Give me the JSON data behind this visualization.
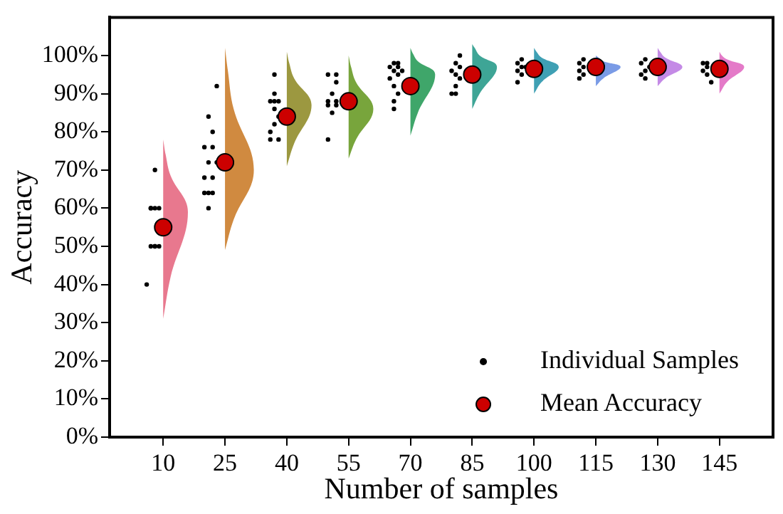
{
  "chart_data": {
    "type": "scatter",
    "xlabel": "Number of samples",
    "ylabel": "Accuracy",
    "xlim": [
      -3,
      158
    ],
    "xticks": [
      10,
      25,
      40,
      55,
      70,
      85,
      100,
      115,
      130,
      145
    ],
    "ylim": [
      0,
      110
    ],
    "yticks": [
      {
        "value": 0,
        "label": "0%"
      },
      {
        "value": 10,
        "label": "10%"
      },
      {
        "value": 20,
        "label": "20%"
      },
      {
        "value": 30,
        "label": "30%"
      },
      {
        "value": 40,
        "label": "40%"
      },
      {
        "value": 50,
        "label": "50%"
      },
      {
        "value": 60,
        "label": "60%"
      },
      {
        "value": 70,
        "label": "70%"
      },
      {
        "value": 80,
        "label": "80%"
      },
      {
        "value": 90,
        "label": "90%"
      },
      {
        "value": 100,
        "label": "100%"
      }
    ],
    "grid": false,
    "legend": "bottom right",
    "series": [
      {
        "type": "area",
        "color": "#e8788e",
        "x": [
          10,
          11.8,
          16,
          11.8,
          10.6,
          10
        ],
        "values": [
          31,
          42,
          59,
          68.5,
          74,
          78
        ]
      },
      {
        "type": "area",
        "color": "#d08a40",
        "x": [
          25,
          27.1,
          32,
          27.1,
          25.7,
          25
        ],
        "values": [
          49,
          57,
          70,
          86,
          96,
          102
        ]
      },
      {
        "type": "area",
        "color": "#9c9840",
        "x": [
          40,
          41.8,
          46,
          41.8,
          40.6,
          40
        ],
        "values": [
          71,
          77,
          87,
          94,
          98,
          101
        ]
      },
      {
        "type": "area",
        "color": "#78a53c",
        "x": [
          55,
          56.8,
          61,
          56.8,
          55.6,
          55
        ],
        "values": [
          73,
          78,
          86,
          93,
          97,
          100
        ]
      },
      {
        "type": "area",
        "color": "#3fa66a",
        "x": [
          70,
          71.8,
          76,
          71.8,
          70.6,
          70
        ],
        "values": [
          79,
          85,
          95,
          98.5,
          100.5,
          102
        ]
      },
      {
        "type": "area",
        "color": "#3ea596",
        "x": [
          85,
          86.8,
          91,
          86.8,
          85.6,
          85
        ],
        "values": [
          86,
          90,
          97,
          100,
          102,
          103
        ]
      },
      {
        "type": "area",
        "color": "#3fa0b4",
        "x": [
          100,
          101.8,
          106,
          101.8,
          100.6,
          100
        ],
        "values": [
          90,
          93,
          97,
          99.5,
          101,
          102
        ]
      },
      {
        "type": "area",
        "color": "#7a9be6",
        "x": [
          115,
          116.8,
          121,
          116.8,
          115.6,
          115
        ],
        "values": [
          92,
          94,
          97,
          98.5,
          99.5,
          100
        ]
      },
      {
        "type": "area",
        "color": "#c48ae6",
        "x": [
          130,
          131.8,
          136,
          131.8,
          130.6,
          130
        ],
        "values": [
          92,
          94,
          97,
          99.5,
          101,
          102
        ]
      },
      {
        "type": "area",
        "color": "#e47ac8",
        "x": [
          145,
          146.8,
          151,
          146.8,
          145.6,
          145
        ],
        "values": [
          90,
          93,
          97,
          99,
          100,
          101
        ]
      },
      {
        "name": "Individual Samples",
        "color": "#000000",
        "marker": "circle",
        "x": [
          8,
          7,
          8,
          9,
          7,
          7,
          8,
          9,
          8,
          6,
          23,
          21,
          22,
          22,
          20,
          23,
          21,
          22,
          20,
          21,
          20,
          22,
          21,
          37,
          37,
          36,
          37,
          38,
          37,
          38,
          37,
          36,
          36,
          38,
          52,
          50,
          52,
          51,
          50,
          52,
          50,
          52,
          51,
          50,
          67,
          66,
          67,
          65,
          66,
          68,
          67,
          65,
          66,
          67,
          66,
          66,
          82,
          81,
          82,
          80,
          81,
          82,
          81,
          80,
          81,
          97,
          96,
          98,
          97,
          96,
          97,
          96,
          112,
          111,
          112,
          111,
          112,
          111,
          127,
          126,
          128,
          127,
          126,
          127,
          142,
          141,
          142,
          141,
          142,
          143
        ],
        "values": [
          70,
          60,
          60,
          60,
          60,
          50,
          50,
          50,
          50,
          40,
          92,
          84,
          80,
          76,
          76,
          72,
          72,
          68,
          68,
          64,
          64,
          64,
          60,
          95,
          90,
          88,
          88,
          88,
          86,
          84,
          82,
          80,
          78,
          78,
          95,
          95,
          93,
          90,
          88,
          88,
          87,
          87,
          85,
          78,
          98,
          98,
          97,
          97,
          96,
          96,
          95,
          94,
          92,
          90,
          88,
          86,
          100,
          98,
          97,
          96,
          95,
          94,
          92,
          90,
          90,
          99,
          98,
          97,
          97,
          96,
          95,
          93,
          99,
          98,
          97,
          96,
          95,
          94,
          99,
          98,
          97,
          96,
          95,
          94,
          98,
          98,
          97,
          96,
          95,
          93
        ]
      },
      {
        "name": "Mean Accuracy",
        "color": "#cc0000",
        "marker": "circle",
        "x": [
          10,
          25,
          40,
          55,
          70,
          85,
          100,
          115,
          130,
          145
        ],
        "values": [
          55,
          72,
          84,
          88,
          92,
          95,
          96.5,
          97,
          97,
          96.5
        ]
      }
    ]
  }
}
